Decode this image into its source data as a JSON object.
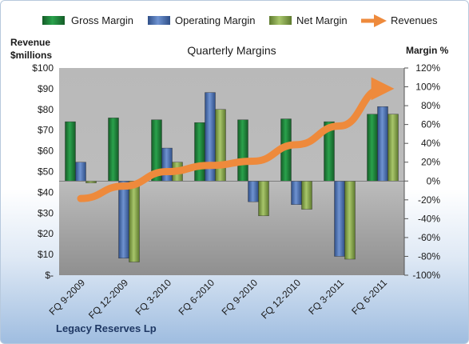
{
  "chart_data": {
    "type": "bar",
    "title": "Quarterly Margins",
    "footer": "Legacy Reserves Lp",
    "left_axis": {
      "title_line1": "Revenue",
      "title_line2": "$millions",
      "range": [
        0,
        100
      ],
      "step": 10,
      "ticks": [
        "$-",
        "$10",
        "$20",
        "$30",
        "$40",
        "$50",
        "$60",
        "$70",
        "$80",
        "$90",
        "$100"
      ]
    },
    "right_axis": {
      "title": "Margin %",
      "range": [
        -100,
        120
      ],
      "step": 20,
      "ticks": [
        "-100%",
        "-80%",
        "-60%",
        "-40%",
        "-20%",
        "0%",
        "20%",
        "40%",
        "60%",
        "80%",
        "100%",
        "120%"
      ]
    },
    "categories": [
      "FQ 9-2009",
      "FQ 12-2009",
      "FQ 3-2010",
      "FQ 6-2010",
      "FQ 9-2010",
      "FQ 12-2010",
      "FQ 3-2011",
      "FQ 6-2011"
    ],
    "series": [
      {
        "name": "Gross Margin",
        "axis": "right",
        "color": "#1f8a3c",
        "values": [
          63,
          67,
          65,
          62,
          65,
          66,
          63,
          71
        ]
      },
      {
        "name": "Operating Margin",
        "axis": "right",
        "color": "#4f74b5",
        "values": [
          20,
          -82,
          35,
          94,
          -22,
          -25,
          -80,
          79
        ]
      },
      {
        "name": "Net Margin",
        "axis": "right",
        "color": "#8cab4f",
        "values": [
          -2,
          -86,
          20,
          76,
          -37,
          -30,
          -83,
          71
        ]
      },
      {
        "name": "Revenues",
        "axis": "left",
        "type": "line",
        "color": "#ee8a3c",
        "values": [
          37,
          43,
          50,
          53,
          55,
          63,
          72,
          90
        ]
      }
    ],
    "legend_position": "top",
    "grid": false
  }
}
